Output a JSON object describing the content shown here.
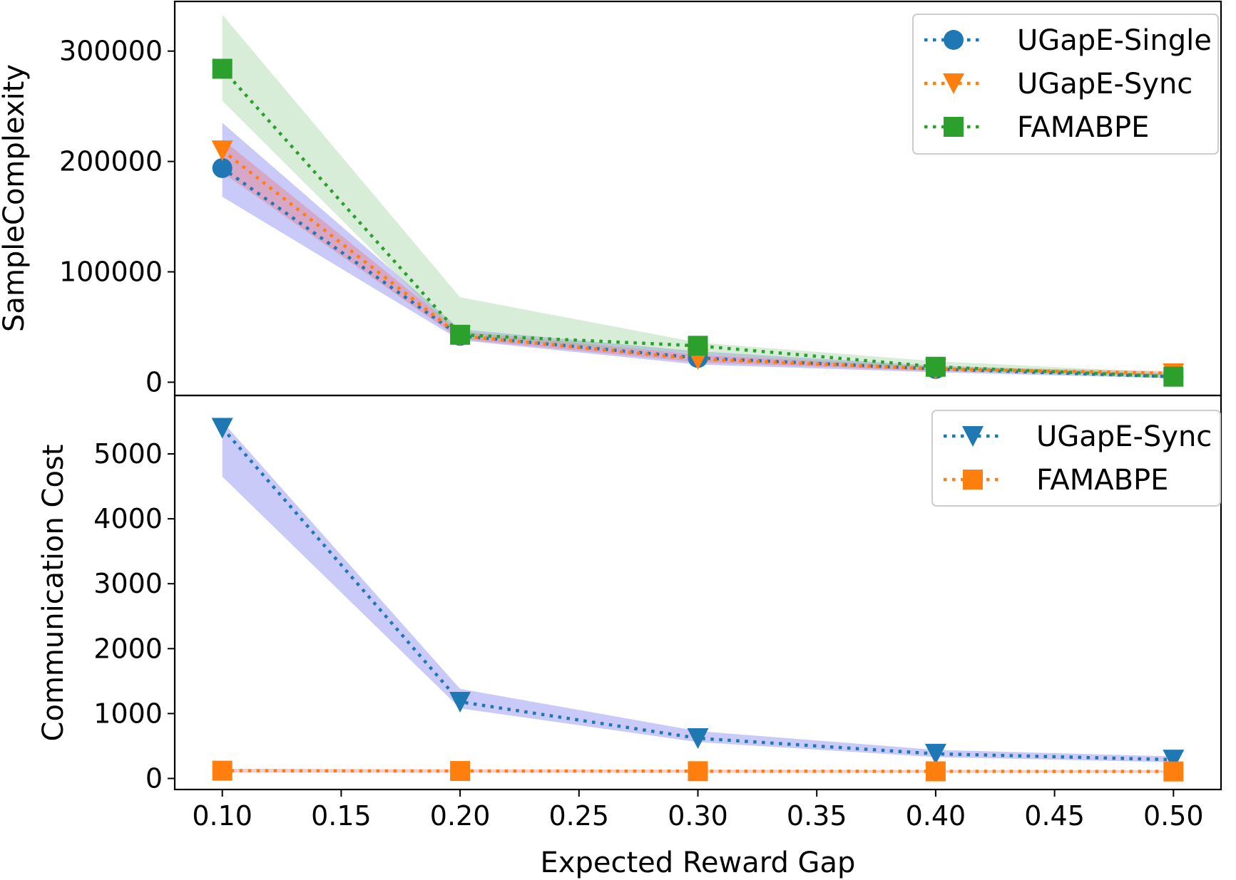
{
  "chart_data": [
    {
      "type": "line",
      "ylabel": "SampleComplexity",
      "xlabel": "",
      "x": [
        0.1,
        0.2,
        0.3,
        0.4,
        0.5
      ],
      "xlim": [
        0.08,
        0.52
      ],
      "ylim": [
        -12000,
        345000
      ],
      "yticks": [
        0,
        100000,
        200000,
        300000
      ],
      "ytick_labels": [
        "0",
        "100000",
        "200000",
        "300000"
      ],
      "legend_position": "top-right",
      "series": [
        {
          "name": "UGapE-Single",
          "color": "#1f77b4",
          "marker": "circle",
          "values": [
            194000,
            42000,
            22000,
            12000,
            5000
          ],
          "band_lower": [
            168000,
            38000,
            16000,
            9000,
            3500
          ],
          "band_upper": [
            235000,
            48000,
            28000,
            15000,
            7500
          ],
          "band_color": "#6666ee"
        },
        {
          "name": "UGapE-Sync",
          "color": "#ff7f0e",
          "marker": "triangle-down",
          "values": [
            210000,
            42000,
            21000,
            12000,
            8000
          ],
          "band_lower": [
            190000,
            39000,
            18000,
            10000,
            6500
          ],
          "band_upper": [
            220000,
            46000,
            25000,
            14000,
            10000
          ],
          "band_color": "#ee6666"
        },
        {
          "name": "FAMABPE",
          "color": "#2ca02c",
          "marker": "square",
          "values": [
            284000,
            43000,
            33000,
            14000,
            5000
          ],
          "band_lower": [
            255000,
            40000,
            26000,
            11000,
            3500
          ],
          "band_upper": [
            333000,
            77000,
            36000,
            19000,
            8500
          ],
          "band_color": "#8ccc8c"
        }
      ]
    },
    {
      "type": "line",
      "ylabel": "Communication Cost",
      "xlabel": "Expected Reward Gap",
      "x": [
        0.1,
        0.2,
        0.3,
        0.4,
        0.5
      ],
      "xlim": [
        0.08,
        0.52
      ],
      "ylim": [
        -170,
        5900
      ],
      "yticks": [
        0,
        1000,
        2000,
        3000,
        4000,
        5000
      ],
      "ytick_labels": [
        "0",
        "1000",
        "2000",
        "3000",
        "4000",
        "5000"
      ],
      "xticks": [
        0.1,
        0.15,
        0.2,
        0.25,
        0.3,
        0.35,
        0.4,
        0.45,
        0.5
      ],
      "xtick_labels": [
        "0.10",
        "0.15",
        "0.20",
        "0.25",
        "0.30",
        "0.35",
        "0.40",
        "0.45",
        "0.50"
      ],
      "legend_position": "top-right",
      "series": [
        {
          "name": "UGapE-Sync",
          "color": "#1f77b4",
          "marker": "triangle-down",
          "values": [
            5400,
            1180,
            620,
            380,
            290
          ],
          "band_lower": [
            4650,
            1080,
            560,
            330,
            250
          ],
          "band_upper": [
            5500,
            1380,
            730,
            440,
            340
          ],
          "band_color": "#6666ee"
        },
        {
          "name": "FAMABPE",
          "color": "#ff7f0e",
          "marker": "square",
          "values": [
            120,
            115,
            112,
            110,
            108
          ],
          "band_lower": [
            90,
            90,
            90,
            90,
            90
          ],
          "band_upper": [
            150,
            140,
            135,
            130,
            128
          ],
          "band_color": "#ee6666"
        }
      ]
    }
  ]
}
